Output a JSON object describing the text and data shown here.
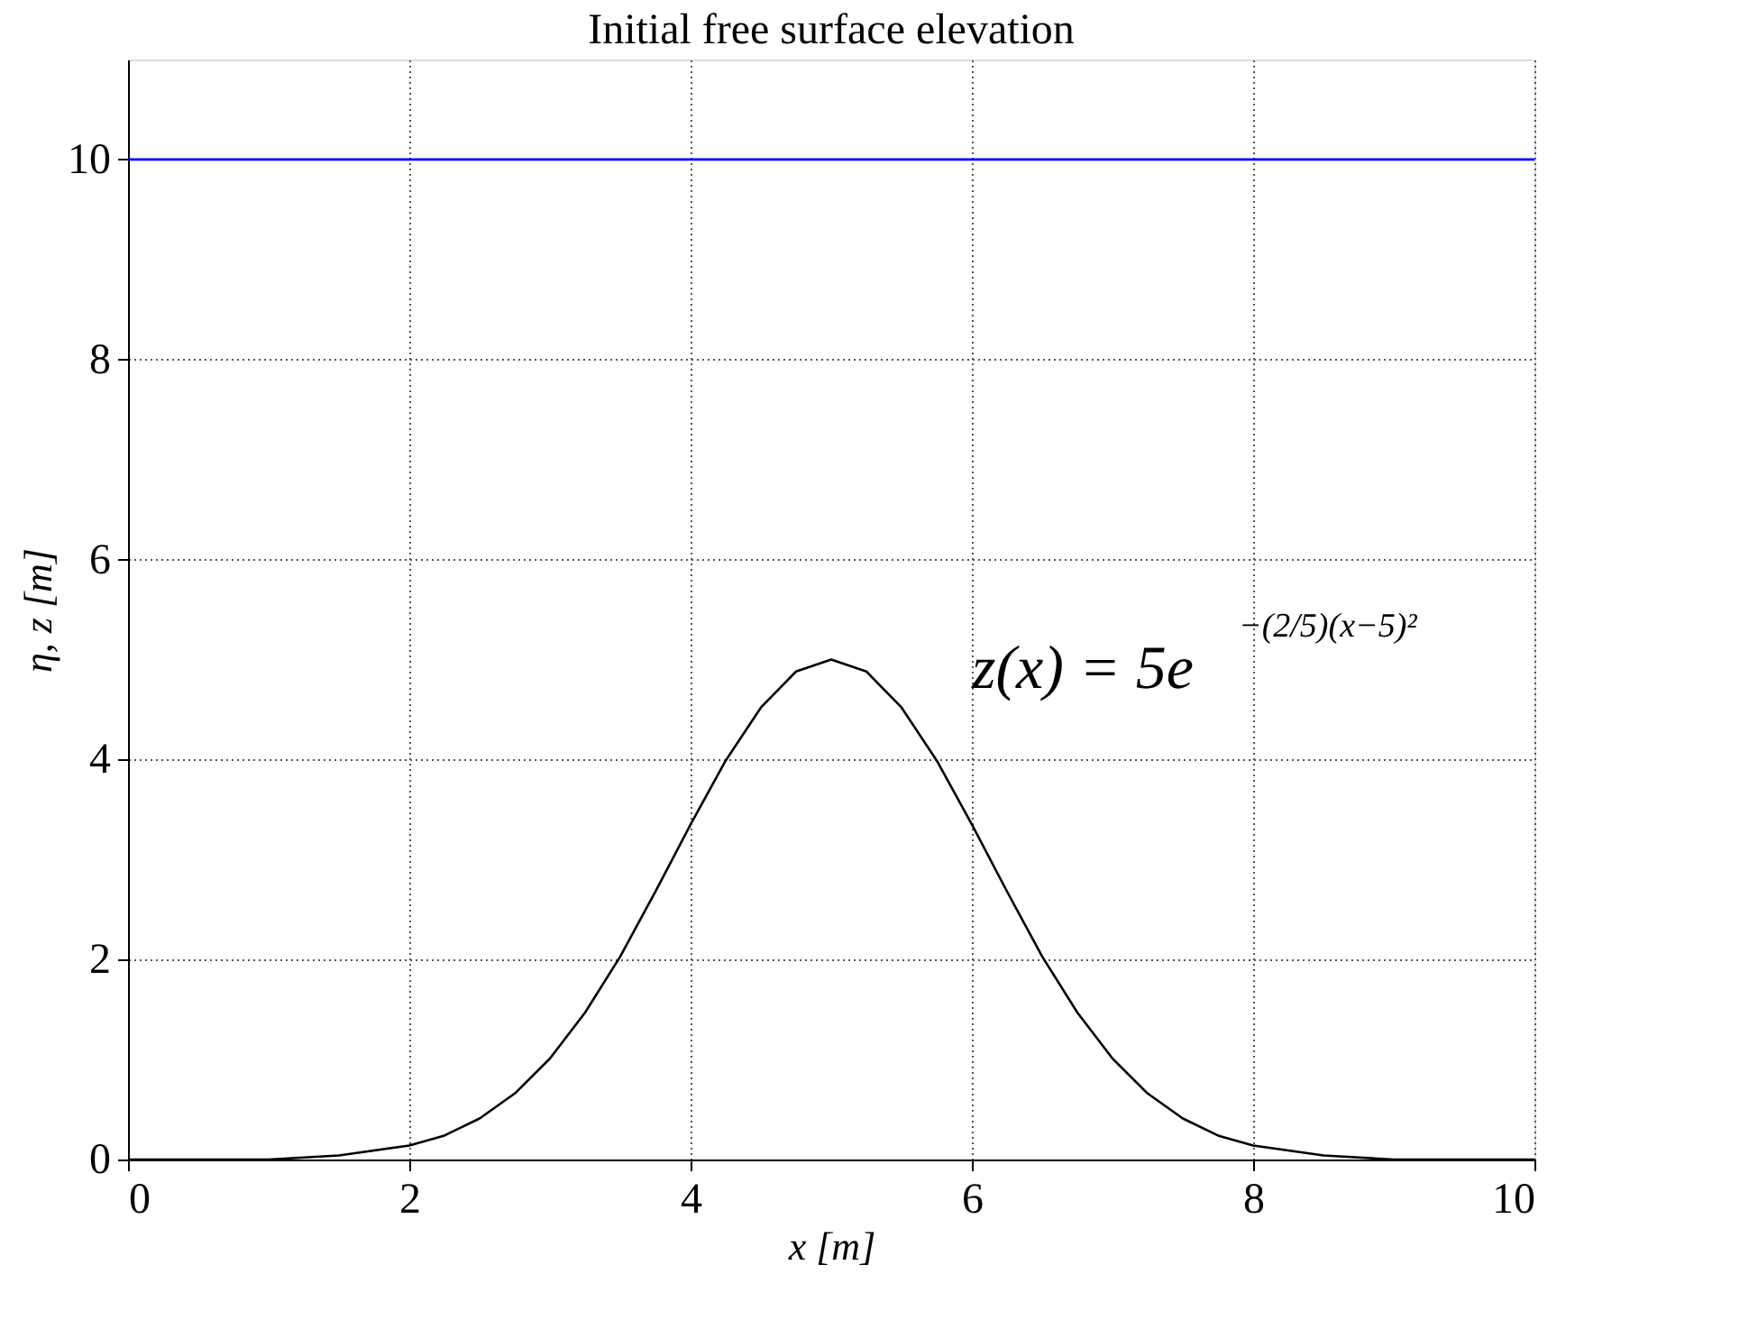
{
  "chart_data": {
    "type": "line",
    "title": "Initial free surface elevation",
    "xlabel": "x  [m]",
    "ylabel": "η, z  [m]",
    "xlim": [
      0,
      10
    ],
    "ylim": [
      0,
      11
    ],
    "xticks": [
      0,
      2,
      4,
      6,
      8,
      10
    ],
    "yticks": [
      0,
      2,
      4,
      6,
      8,
      10
    ],
    "grid": true,
    "line_style": "solid",
    "annotations": [
      "z(x) = 5e$^{−(2/5)(x−5)²}$"
    ],
    "series": [
      {
        "color": "#0000ff",
        "x": [
          0,
          10
        ],
        "values": [
          10,
          10
        ]
      },
      {
        "color": "#000000",
        "x": [
          0,
          0.5,
          1,
          1.5,
          2,
          2.25,
          2.5,
          2.75,
          3,
          3.25,
          3.5,
          3.75,
          4,
          4.25,
          4.5,
          4.75,
          5,
          5.25,
          5.5,
          5.75,
          6,
          6.25,
          6.5,
          6.75,
          7,
          7.25,
          7.5,
          7.75,
          8,
          8.5,
          9,
          9.5,
          10
        ],
        "values": [
          0.0,
          0.0,
          0.0,
          0.04,
          0.14,
          0.24,
          0.41,
          0.66,
          1.01,
          1.47,
          2.03,
          2.68,
          3.35,
          3.99,
          4.52,
          4.88,
          5.0,
          4.88,
          4.52,
          3.99,
          3.35,
          2.68,
          2.03,
          1.47,
          1.01,
          0.66,
          0.41,
          0.24,
          0.14,
          0.04,
          0.0,
          0.0,
          0.0
        ]
      }
    ]
  }
}
